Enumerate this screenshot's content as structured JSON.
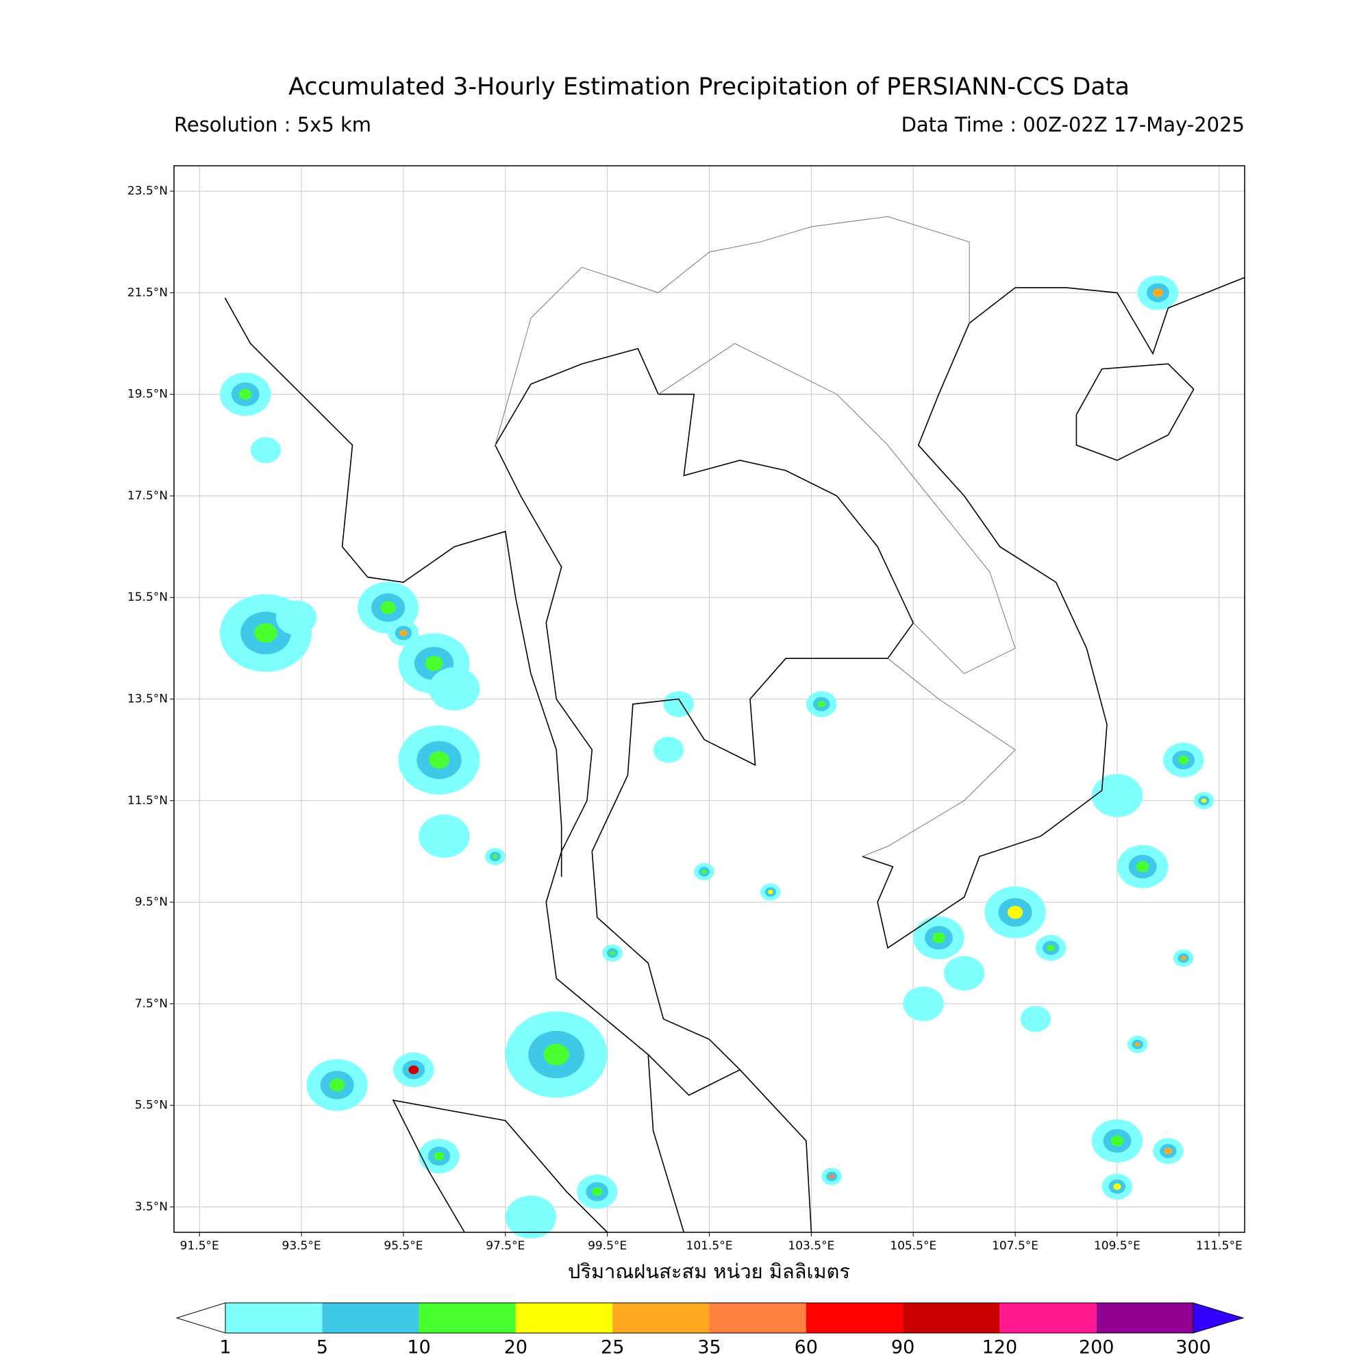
{
  "header": {
    "title": "Accumulated 3-Hourly Estimation Precipitation of PERSIANN-CCS Data",
    "resolution": "Resolution : 5x5 km",
    "data_time": "Data Time : 00Z-02Z 17-May-2025"
  },
  "map": {
    "xlim": [
      91,
      112
    ],
    "ylim": [
      3,
      24
    ],
    "xticks": [
      {
        "value": 91.5,
        "label": "91.5°E"
      },
      {
        "value": 93.5,
        "label": "93.5°E"
      },
      {
        "value": 95.5,
        "label": "95.5°E"
      },
      {
        "value": 97.5,
        "label": "97.5°E"
      },
      {
        "value": 99.5,
        "label": "99.5°E"
      },
      {
        "value": 101.5,
        "label": "101.5°E"
      },
      {
        "value": 103.5,
        "label": "103.5°E"
      },
      {
        "value": 105.5,
        "label": "105.5°E"
      },
      {
        "value": 107.5,
        "label": "107.5°E"
      },
      {
        "value": 109.5,
        "label": "109.5°E"
      },
      {
        "value": 111.5,
        "label": "111.5°E"
      }
    ],
    "yticks": [
      {
        "value": 23.5,
        "label": "23.5°N"
      },
      {
        "value": 21.5,
        "label": "21.5°N"
      },
      {
        "value": 19.5,
        "label": "19.5°N"
      },
      {
        "value": 17.5,
        "label": "17.5°N"
      },
      {
        "value": 15.5,
        "label": "15.5°N"
      },
      {
        "value": 13.5,
        "label": "13.5°N"
      },
      {
        "value": 11.5,
        "label": "11.5°N"
      },
      {
        "value": 9.5,
        "label": "9.5°N"
      },
      {
        "value": 7.5,
        "label": "7.5°N"
      },
      {
        "value": 5.5,
        "label": "5.5°N"
      },
      {
        "value": 3.5,
        "label": "3.5°N"
      }
    ],
    "grid": true,
    "xlabel": "ปริมาณฝนสะสม หน่วย มิลลิเมตร",
    "rain_cells": [
      {
        "lon": 92.4,
        "lat": 19.5,
        "value": 10,
        "radius": 0.5
      },
      {
        "lon": 92.8,
        "lat": 14.8,
        "value": 10,
        "radius": 0.9
      },
      {
        "lon": 93.4,
        "lat": 15.1,
        "value": 5,
        "radius": 0.4
      },
      {
        "lon": 95.2,
        "lat": 15.3,
        "value": 10,
        "radius": 0.6
      },
      {
        "lon": 95.5,
        "lat": 14.8,
        "value": 25,
        "radius": 0.3
      },
      {
        "lon": 96.1,
        "lat": 14.2,
        "value": 10,
        "radius": 0.7
      },
      {
        "lon": 96.5,
        "lat": 13.7,
        "value": 5,
        "radius": 0.5
      },
      {
        "lon": 96.2,
        "lat": 12.3,
        "value": 10,
        "radius": 0.8
      },
      {
        "lon": 96.3,
        "lat": 10.8,
        "value": 5,
        "radius": 0.5
      },
      {
        "lon": 98.5,
        "lat": 6.5,
        "value": 10,
        "radius": 1.0
      },
      {
        "lon": 95.7,
        "lat": 6.2,
        "value": 90,
        "radius": 0.4
      },
      {
        "lon": 94.2,
        "lat": 5.9,
        "value": 10,
        "radius": 0.6
      },
      {
        "lon": 96.2,
        "lat": 4.5,
        "value": 10,
        "radius": 0.4
      },
      {
        "lon": 98.0,
        "lat": 3.3,
        "value": 5,
        "radius": 0.5
      },
      {
        "lon": 99.3,
        "lat": 3.8,
        "value": 10,
        "radius": 0.4
      },
      {
        "lon": 92.8,
        "lat": 18.4,
        "value": 5,
        "radius": 0.3
      },
      {
        "lon": 103.7,
        "lat": 13.4,
        "value": 10,
        "radius": 0.3
      },
      {
        "lon": 106.0,
        "lat": 8.8,
        "value": 10,
        "radius": 0.5
      },
      {
        "lon": 107.5,
        "lat": 9.3,
        "value": 20,
        "radius": 0.6
      },
      {
        "lon": 108.2,
        "lat": 8.6,
        "value": 10,
        "radius": 0.3
      },
      {
        "lon": 110.3,
        "lat": 21.5,
        "value": 25,
        "radius": 0.4
      },
      {
        "lon": 110.0,
        "lat": 10.2,
        "value": 10,
        "radius": 0.5
      },
      {
        "lon": 110.8,
        "lat": 12.3,
        "value": 10,
        "radius": 0.4
      },
      {
        "lon": 109.5,
        "lat": 11.6,
        "value": 5,
        "radius": 0.5
      },
      {
        "lon": 109.5,
        "lat": 4.8,
        "value": 10,
        "radius": 0.5
      },
      {
        "lon": 109.5,
        "lat": 3.9,
        "value": 20,
        "radius": 0.3
      },
      {
        "lon": 110.5,
        "lat": 4.6,
        "value": 25,
        "radius": 0.3
      },
      {
        "lon": 109.9,
        "lat": 6.7,
        "value": 25,
        "radius": 0.2
      },
      {
        "lon": 107.9,
        "lat": 7.2,
        "value": 5,
        "radius": 0.3
      },
      {
        "lon": 105.7,
        "lat": 7.5,
        "value": 5,
        "radius": 0.4
      },
      {
        "lon": 106.5,
        "lat": 8.1,
        "value": 5,
        "radius": 0.4
      },
      {
        "lon": 100.9,
        "lat": 13.4,
        "value": 5,
        "radius": 0.3
      },
      {
        "lon": 102.7,
        "lat": 9.7,
        "value": 20,
        "radius": 0.2
      },
      {
        "lon": 101.4,
        "lat": 10.1,
        "value": 10,
        "radius": 0.2
      },
      {
        "lon": 99.6,
        "lat": 8.5,
        "value": 10,
        "radius": 0.2
      },
      {
        "lon": 97.3,
        "lat": 10.4,
        "value": 10,
        "radius": 0.2
      },
      {
        "lon": 110.8,
        "lat": 8.4,
        "value": 25,
        "radius": 0.2
      },
      {
        "lon": 111.2,
        "lat": 11.5,
        "value": 20,
        "radius": 0.2
      },
      {
        "lon": 103.9,
        "lat": 4.1,
        "value": 35,
        "radius": 0.2
      },
      {
        "lon": 100.7,
        "lat": 12.5,
        "value": 5,
        "radius": 0.3
      }
    ]
  },
  "colorbar": {
    "levels": [
      1,
      5,
      10,
      20,
      25,
      35,
      60,
      90,
      120,
      200,
      300
    ],
    "colors": [
      "#80ffff",
      "#40c8e8",
      "#48ff30",
      "#ffff00",
      "#ffa820",
      "#ff8040",
      "#ff0000",
      "#c80000",
      "#ff1890",
      "#900090"
    ],
    "under_color": "#ffffff",
    "over_color": "#3300ff"
  }
}
